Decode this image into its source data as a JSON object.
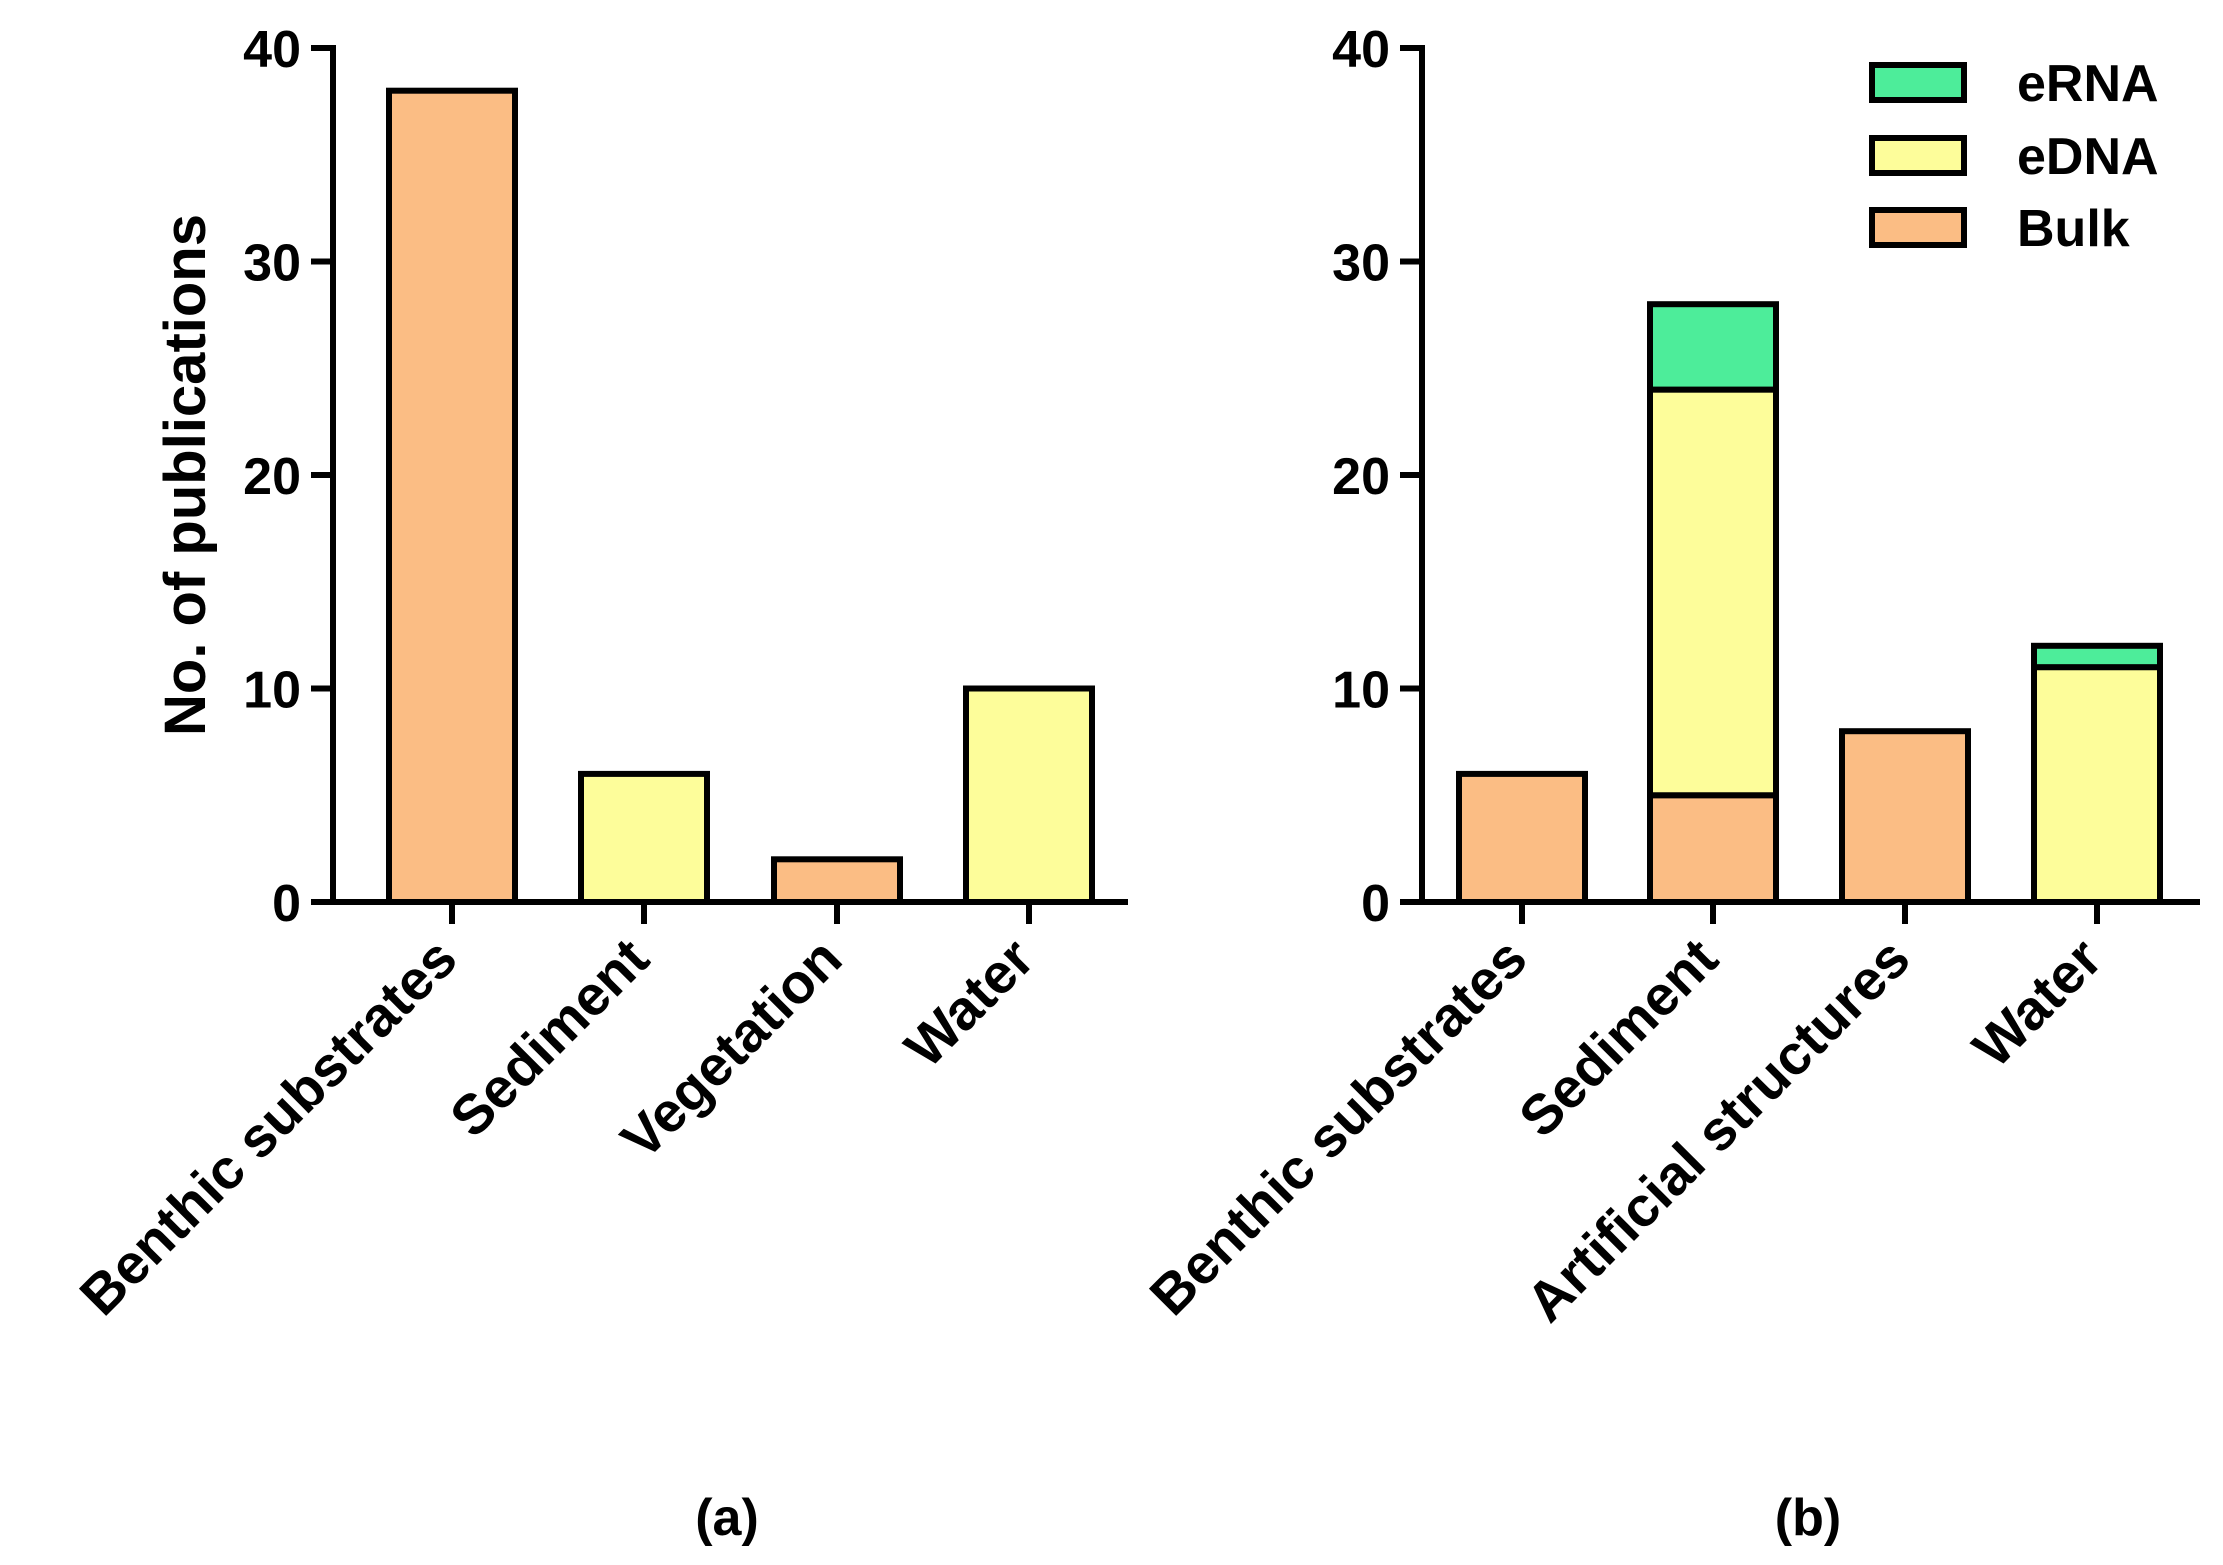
{
  "colors": {
    "bulk": "#FBBD84",
    "edna": "#FDFD9A",
    "erna": "#4DED9A",
    "stroke": "#000000"
  },
  "chart_data": [
    {
      "type": "bar",
      "panel_label": "(a)",
      "ylabel": "No. of publications",
      "ylim": [
        0,
        40
      ],
      "yticks": [
        0,
        10,
        20,
        30,
        40
      ],
      "categories": [
        "Benthic substrates",
        "Sediment",
        "Vegetation",
        "Water"
      ],
      "values": [
        38,
        6,
        2,
        10
      ],
      "bar_types": [
        "Bulk",
        "eDNA",
        "Bulk",
        "eDNA"
      ]
    },
    {
      "type": "bar",
      "stacked": true,
      "panel_label": "(b)",
      "ylabel": "",
      "ylim": [
        0,
        40
      ],
      "yticks": [
        0,
        10,
        20,
        30,
        40
      ],
      "categories": [
        "Benthic substrates",
        "Sediment",
        "Artificial structures",
        "Water"
      ],
      "series": [
        {
          "name": "Bulk",
          "values": [
            6,
            5,
            8,
            0
          ]
        },
        {
          "name": "eDNA",
          "values": [
            0,
            19,
            0,
            11
          ]
        },
        {
          "name": "eRNA",
          "values": [
            0,
            4,
            0,
            1
          ]
        }
      ],
      "legend": [
        "eRNA",
        "eDNA",
        "Bulk"
      ],
      "legend_position": "top-right"
    }
  ]
}
